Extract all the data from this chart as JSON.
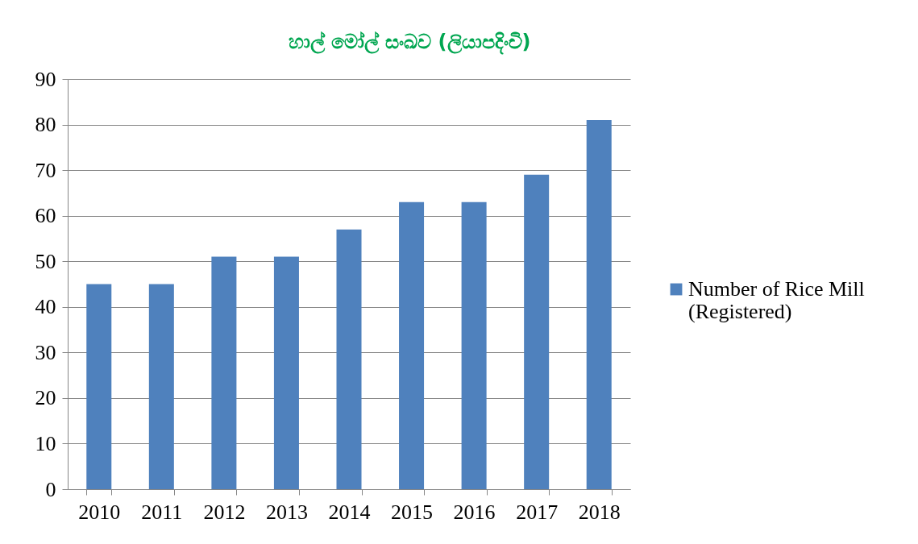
{
  "chart_data": {
    "type": "bar",
    "title": "හාල් මෝල් සංඛව (ලියාපදිංචි)",
    "categories": [
      "2010",
      "2011",
      "2012",
      "2013",
      "2014",
      "2015",
      "2016",
      "2017",
      "2018"
    ],
    "series": [
      {
        "name": "Number of Rice Mill (Registered)",
        "color": "#4f81bd",
        "values": [
          45,
          45,
          51,
          51,
          57,
          63,
          63,
          69,
          81
        ]
      }
    ],
    "ylim": [
      0,
      90
    ],
    "yticks": [
      0,
      10,
      20,
      30,
      40,
      50,
      60,
      70,
      80,
      90
    ],
    "grid": "y",
    "legend": "right"
  }
}
